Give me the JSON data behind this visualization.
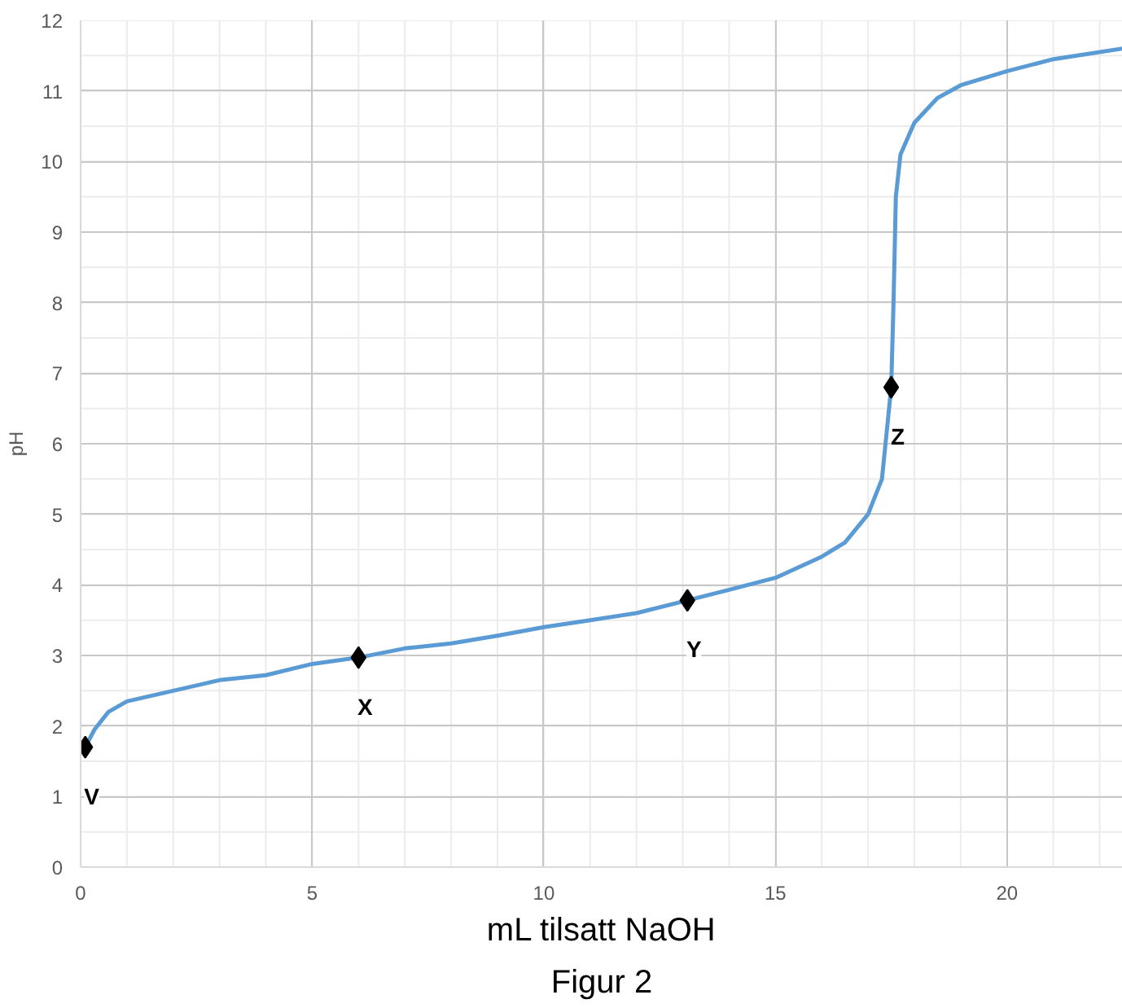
{
  "chart_data": {
    "type": "line",
    "xlabel": "mL tilsatt NaOH",
    "ylabel": "pH",
    "xlim": [
      0,
      22.5
    ],
    "ylim": [
      0,
      12
    ],
    "xticks": [
      0,
      5,
      10,
      15,
      20
    ],
    "yticks": [
      0,
      1,
      2,
      3,
      4,
      5,
      6,
      7,
      8,
      9,
      10,
      11,
      12
    ],
    "grid": true,
    "series": [
      {
        "color": "#5b9bd5",
        "marker": "none",
        "line_style": "solid",
        "x": [
          0.1,
          0.3,
          0.6,
          1,
          2,
          3,
          4,
          5,
          6,
          7,
          8,
          9,
          10,
          11,
          12,
          13.1,
          14,
          15,
          16,
          16.5,
          17,
          17.3,
          17.5,
          17.55,
          17.6,
          17.7,
          18,
          18.5,
          19,
          20,
          21,
          22.5
        ],
        "values": [
          1.7,
          1.95,
          2.2,
          2.35,
          2.5,
          2.65,
          2.72,
          2.88,
          2.97,
          3.1,
          3.17,
          3.28,
          3.4,
          3.5,
          3.6,
          3.78,
          3.93,
          4.1,
          4.4,
          4.6,
          5.0,
          5.5,
          6.8,
          8.0,
          9.5,
          10.1,
          10.55,
          10.9,
          11.08,
          11.28,
          11.45,
          11.6
        ]
      },
      {
        "type": "scatter",
        "color": "#000000",
        "marker": "diamond",
        "x": [
          0.1,
          6,
          13.1,
          17.5
        ],
        "values": [
          1.7,
          2.97,
          3.78,
          6.8
        ]
      }
    ],
    "annotations": [
      {
        "text": "V",
        "x": 0.1,
        "y": 1.7
      },
      {
        "text": "X",
        "x": 6,
        "y": 2.97
      },
      {
        "text": "Y",
        "x": 13.1,
        "y": 3.78
      },
      {
        "text": "Z",
        "x": 17.5,
        "y": 6.8
      },
      "Figur 2"
    ]
  }
}
